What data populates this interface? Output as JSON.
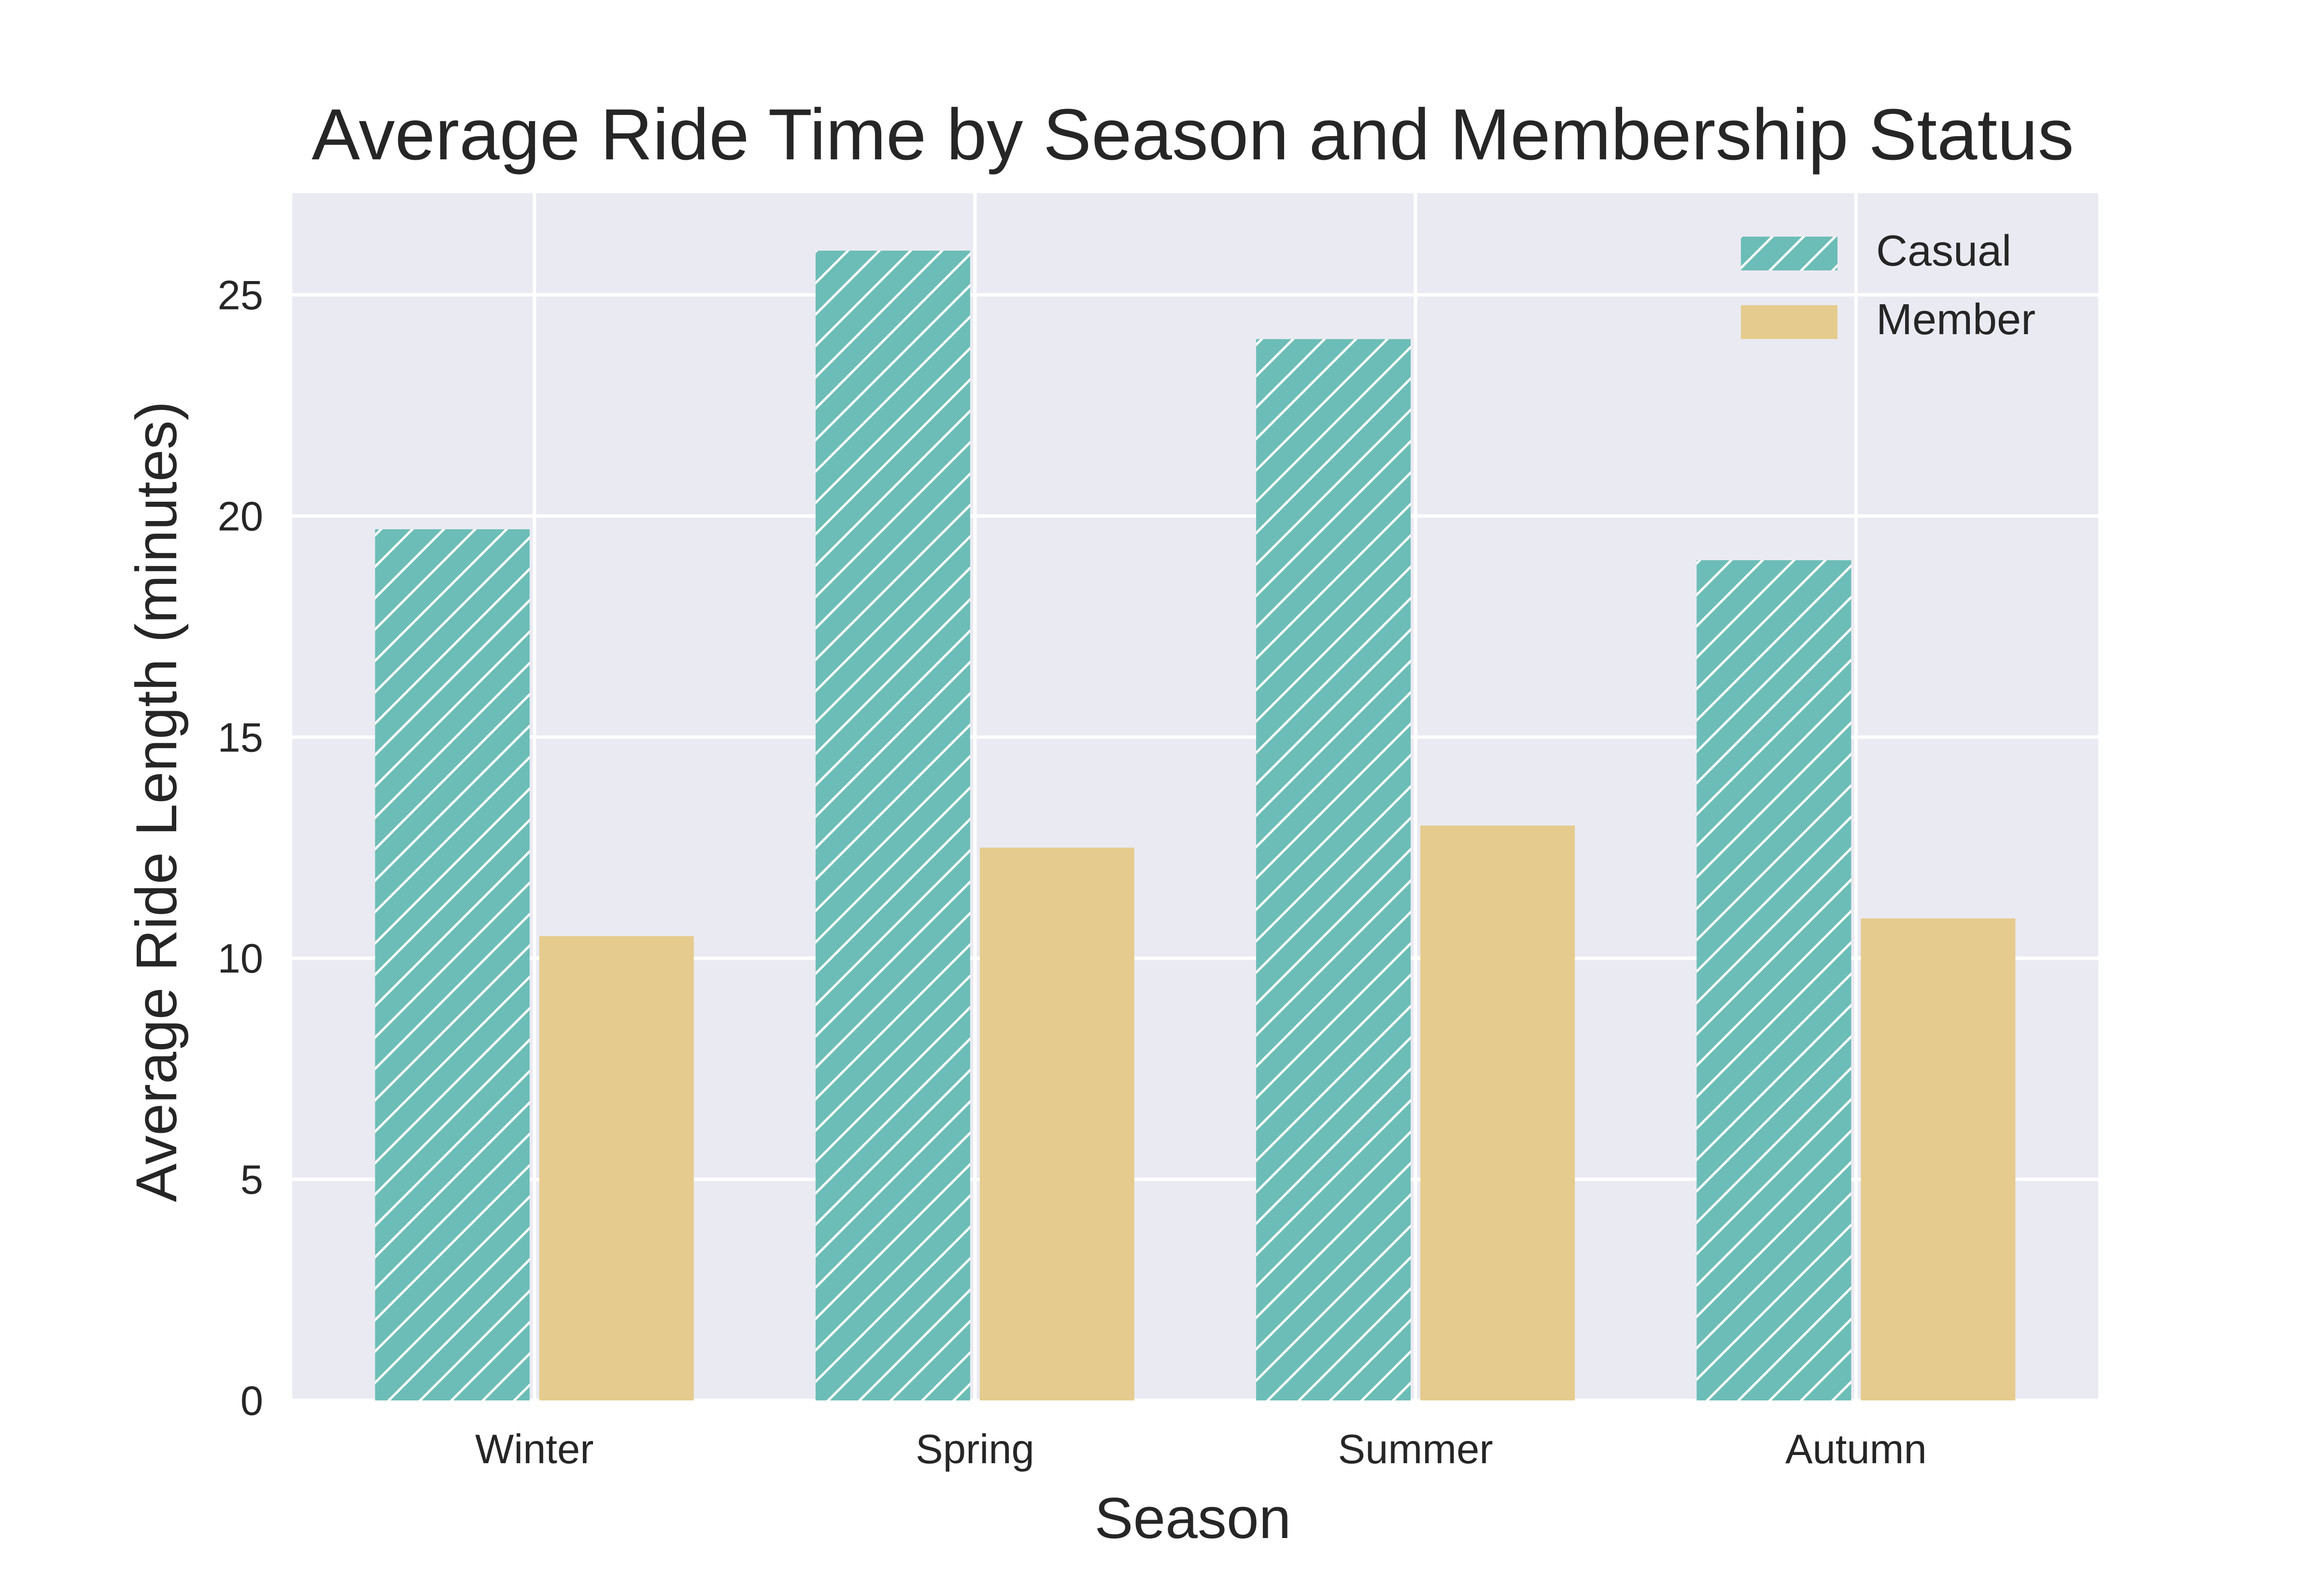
{
  "chart_data": {
    "type": "bar",
    "title": "Average Ride Time by Season and Membership Status",
    "xlabel": "Season",
    "ylabel": "Average Ride Length (minutes)",
    "categories": [
      "Winter",
      "Spring",
      "Summer",
      "Autumn"
    ],
    "series": [
      {
        "name": "Casual",
        "values": [
          19.7,
          26.0,
          24.0,
          19.0
        ],
        "color": "#6cbdb7",
        "hatch": "diagonal"
      },
      {
        "name": "Member",
        "values": [
          10.5,
          12.5,
          13.0,
          10.9
        ],
        "color": "#e5cb8d",
        "hatch": "none"
      }
    ],
    "ylim": [
      0,
      27.3
    ],
    "yticks": [
      0,
      5,
      10,
      15,
      20,
      25
    ],
    "grid": true,
    "legend_position": "top-right",
    "plot_background": "#eaeaf2",
    "grid_color": "#ffffff"
  }
}
